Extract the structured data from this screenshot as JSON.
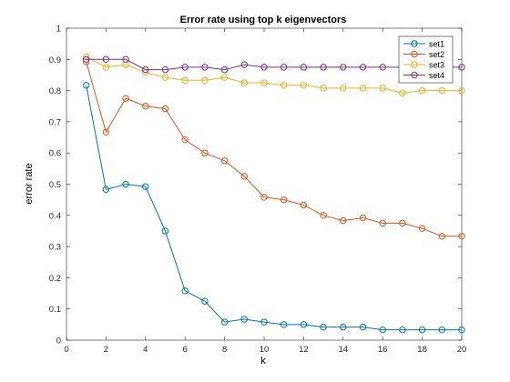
{
  "chart_data": {
    "type": "line",
    "title": "Error rate using top k eigenvectors",
    "xlabel": "k",
    "ylabel": "error rate",
    "xlim": [
      0,
      20
    ],
    "ylim": [
      0,
      1
    ],
    "xticks": [
      0,
      2,
      4,
      6,
      8,
      10,
      12,
      14,
      16,
      18,
      20
    ],
    "yticks": [
      0,
      0.1,
      0.2,
      0.3,
      0.4,
      0.5,
      0.6,
      0.7,
      0.8,
      0.9,
      1
    ],
    "grid": false,
    "legend_position": "top-right",
    "marker": "circle",
    "x": [
      1,
      2,
      3,
      4,
      5,
      6,
      7,
      8,
      9,
      10,
      11,
      12,
      13,
      14,
      15,
      16,
      17,
      18,
      19,
      20
    ],
    "series": [
      {
        "name": "set1",
        "color": "#0072BD",
        "values": [
          0.817,
          0.483,
          0.5,
          0.492,
          0.35,
          0.158,
          0.125,
          0.058,
          0.067,
          0.058,
          0.05,
          0.05,
          0.042,
          0.042,
          0.042,
          0.033,
          0.033,
          0.033,
          0.033,
          0.033
        ]
      },
      {
        "name": "set2",
        "color": "#D95319",
        "values": [
          0.892,
          0.667,
          0.775,
          0.75,
          0.742,
          0.642,
          0.6,
          0.575,
          0.525,
          0.458,
          0.45,
          0.433,
          0.4,
          0.383,
          0.392,
          0.375,
          0.375,
          0.358,
          0.333,
          0.333
        ]
      },
      {
        "name": "set3",
        "color": "#EDB120",
        "values": [
          0.908,
          0.875,
          0.883,
          0.858,
          0.842,
          0.833,
          0.833,
          0.842,
          0.825,
          0.825,
          0.817,
          0.817,
          0.808,
          0.808,
          0.808,
          0.808,
          0.792,
          0.8,
          0.8,
          0.8
        ]
      },
      {
        "name": "set4",
        "color": "#7E2F8E",
        "values": [
          0.9,
          0.9,
          0.9,
          0.867,
          0.867,
          0.875,
          0.875,
          0.867,
          0.883,
          0.875,
          0.875,
          0.875,
          0.875,
          0.875,
          0.875,
          0.875,
          0.875,
          0.875,
          0.875,
          0.875
        ]
      }
    ]
  }
}
